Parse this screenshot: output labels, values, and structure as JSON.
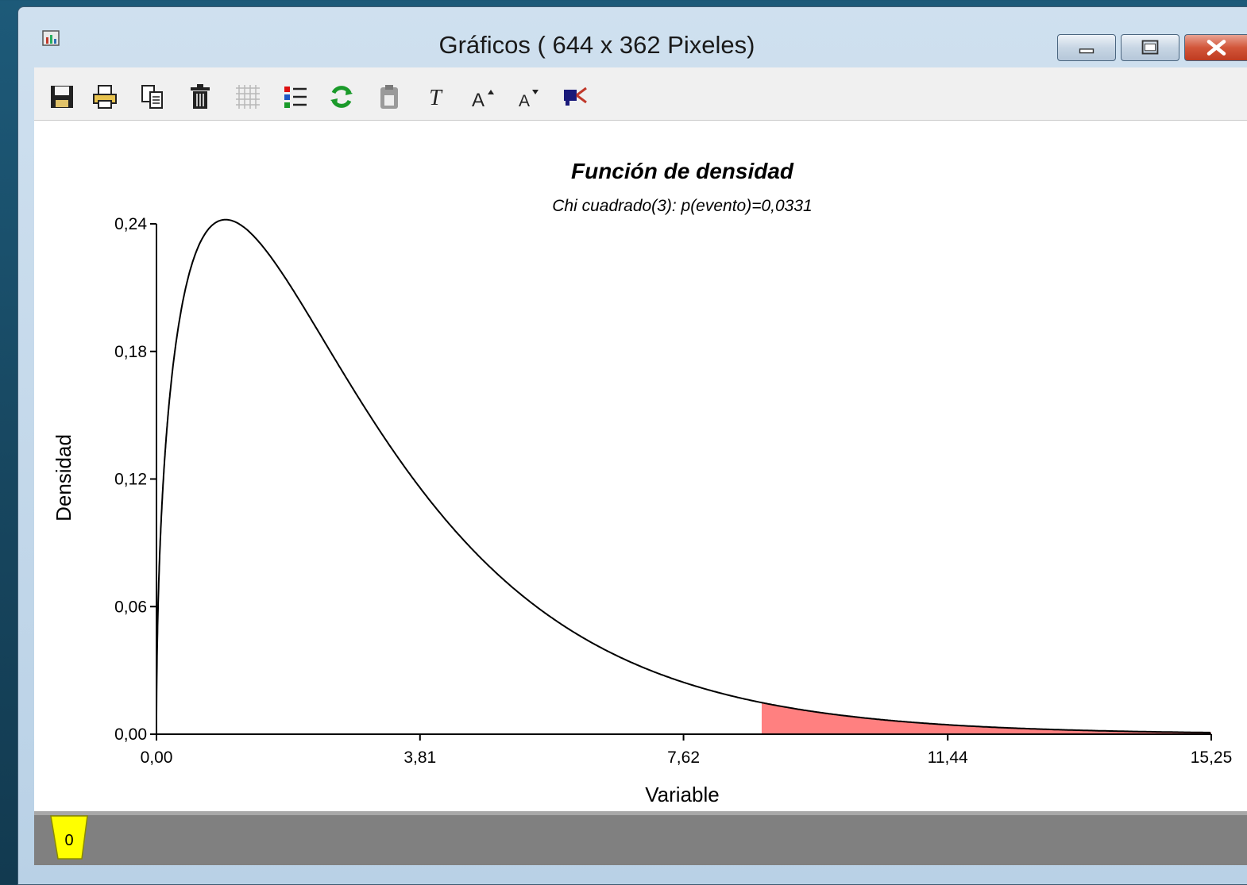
{
  "window": {
    "title": "Gráficos ( 644 x 362 Pixeles)"
  },
  "toolbar": {
    "items": [
      {
        "icon": "save-icon"
      },
      {
        "icon": "print-icon"
      },
      {
        "icon": "copy-icon"
      },
      {
        "icon": "trash-icon"
      },
      {
        "icon": "grid-icon"
      },
      {
        "icon": "legend-list-icon"
      },
      {
        "icon": "refresh-icon"
      },
      {
        "icon": "clipboard-icon"
      },
      {
        "icon": "text-icon"
      },
      {
        "icon": "font-increase-icon"
      },
      {
        "icon": "font-decrease-icon"
      },
      {
        "icon": "color-selector-icon"
      }
    ]
  },
  "status": {
    "tab_label": "0"
  },
  "colors": {
    "shaded_region": "#ff8080",
    "curve": "#000000",
    "tab_tag": "#ffff00"
  },
  "chart_data": {
    "type": "area",
    "title": "Función de densidad",
    "subtitle": "Chi cuadrado(3): p(evento)=0,0331",
    "xlabel": "Variable",
    "ylabel": "Densidad",
    "xlim": [
      0,
      15.25
    ],
    "ylim": [
      0,
      0.24
    ],
    "x_ticks": [
      "0,00",
      "3,81",
      "7,62",
      "11,44",
      "15,25"
    ],
    "x_tick_values": [
      0,
      3.81,
      7.62,
      11.44,
      15.25
    ],
    "y_ticks": [
      "0,00",
      "0,06",
      "0,12",
      "0,18",
      "0,24"
    ],
    "y_tick_values": [
      0,
      0.06,
      0.12,
      0.18,
      0.24
    ],
    "distribution": "chi-squared",
    "degrees_of_freedom": 3,
    "shaded_from_x": 8.75,
    "shaded_probability": 0.0331,
    "grid": false
  }
}
